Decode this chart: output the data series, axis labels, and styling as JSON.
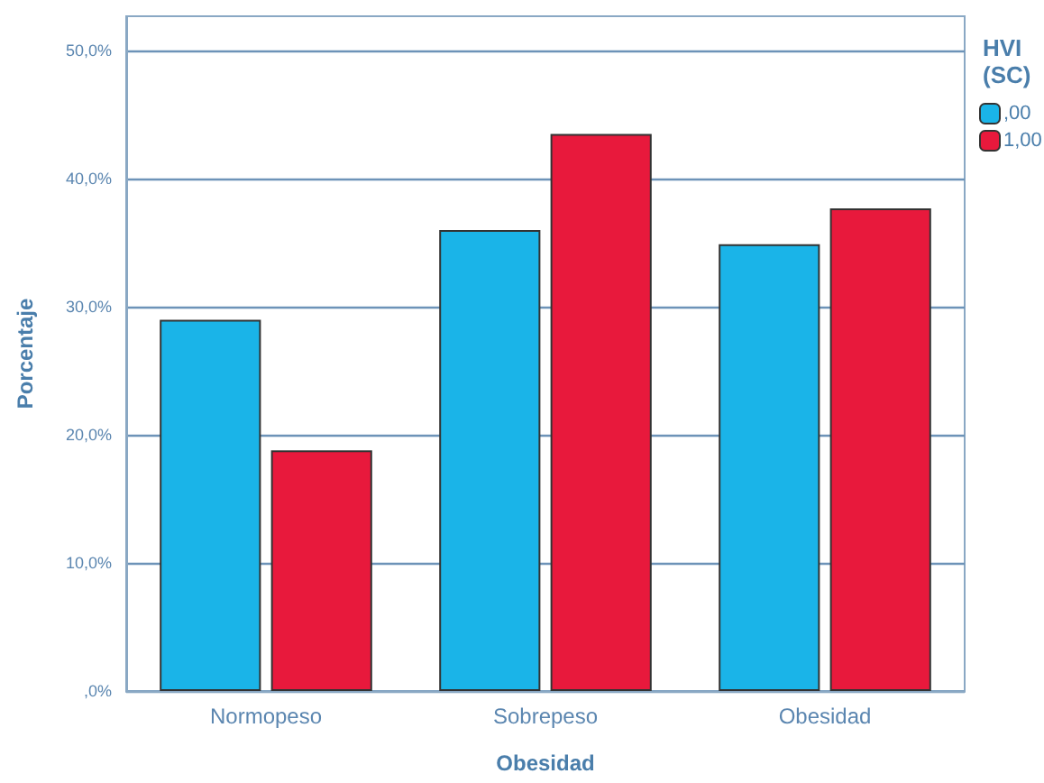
{
  "chart_data": {
    "type": "bar",
    "xlabel": "Obesidad",
    "ylabel": "Porcentaje",
    "legend_title": "HVI\n(SC)",
    "categories": [
      "Normopeso",
      "Sobrepeso",
      "Obesidad"
    ],
    "series": [
      {
        "name": ",00",
        "color": "#1ab4e8",
        "values": [
          29.0,
          36.0,
          34.9
        ]
      },
      {
        "name": "1,00",
        "color": "#e8193c",
        "values": [
          18.8,
          43.5,
          37.7
        ]
      }
    ],
    "ylim": [
      0,
      52.7
    ],
    "yticks": [
      {
        "value": 0,
        "label": ",0%"
      },
      {
        "value": 10,
        "label": "10,0%"
      },
      {
        "value": 20,
        "label": "20,0%"
      },
      {
        "value": 30,
        "label": "30,0%"
      },
      {
        "value": 40,
        "label": "40,0%"
      },
      {
        "value": 50,
        "label": "50,0%"
      }
    ],
    "grid": "y",
    "legend": "top right"
  }
}
